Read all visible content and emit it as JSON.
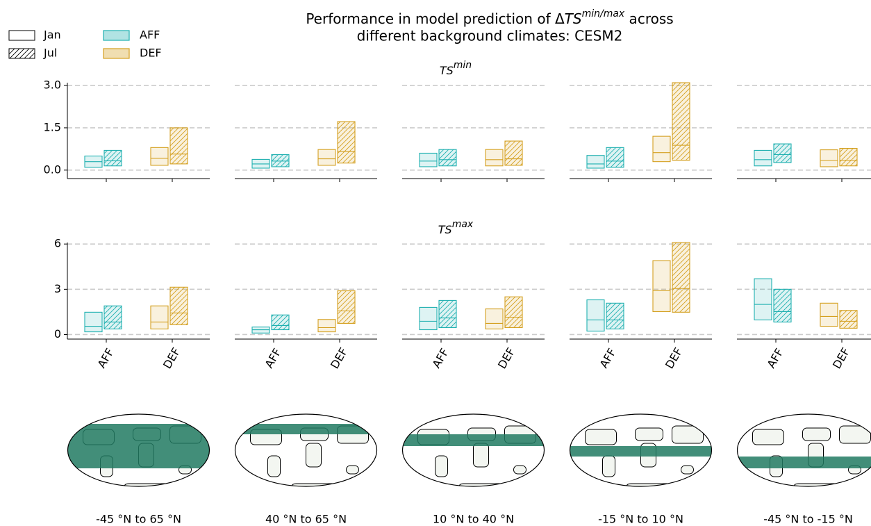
{
  "title": {
    "prefix": "Performance in model prediction of Δ",
    "symbol": "TS",
    "sup": "min/max",
    "suffix": " across",
    "line2": "different background climates: CESM2"
  },
  "series": [
    {
      "name": "Jan",
      "hatch": false
    },
    {
      "name": "Jul",
      "hatch": true
    }
  ],
  "categories": [
    "AFF",
    "DEF"
  ],
  "colors": [
    "#1fb0b0",
    "#d4a020"
  ],
  "legend": "upper left",
  "chart_data": [
    {
      "type": "box",
      "title": {
        "symbol": "TS",
        "sup": "min"
      },
      "ylim": [
        -0.3,
        3.1
      ],
      "yticks": [
        {
          "value": 0,
          "label": "0.0"
        },
        1.5,
        {
          "value": 3,
          "label": "3.0"
        }
      ],
      "grid": true,
      "panels": [
        {
          "series": [
            {
              "q1": [
                0.1,
                0.17
              ],
              "median": [
                0.3,
                0.42
              ],
              "q3": [
                0.5,
                0.8
              ]
            },
            {
              "q1": [
                0.15,
                0.22
              ],
              "median": [
                0.33,
                0.57
              ],
              "q3": [
                0.7,
                1.5
              ]
            }
          ]
        },
        {
          "series": [
            {
              "q1": [
                0.07,
                0.17
              ],
              "median": [
                0.22,
                0.4
              ],
              "q3": [
                0.38,
                0.73
              ]
            },
            {
              "q1": [
                0.12,
                0.25
              ],
              "median": [
                0.32,
                0.66
              ],
              "q3": [
                0.55,
                1.72
              ]
            }
          ]
        },
        {
          "series": [
            {
              "q1": [
                0.12,
                0.15
              ],
              "median": [
                0.32,
                0.37
              ],
              "q3": [
                0.6,
                0.73
              ]
            },
            {
              "q1": [
                0.15,
                0.17
              ],
              "median": [
                0.37,
                0.4
              ],
              "q3": [
                0.73,
                1.03
              ]
            }
          ]
        },
        {
          "series": [
            {
              "q1": [
                0.07,
                0.3
              ],
              "median": [
                0.22,
                0.62
              ],
              "q3": [
                0.52,
                1.2
              ]
            },
            {
              "q1": [
                0.1,
                0.35
              ],
              "median": [
                0.32,
                0.88
              ],
              "q3": [
                0.8,
                3.1
              ]
            }
          ]
        },
        {
          "series": [
            {
              "q1": [
                0.15,
                0.12
              ],
              "median": [
                0.37,
                0.35
              ],
              "q3": [
                0.7,
                0.72
              ]
            },
            {
              "q1": [
                0.27,
                0.15
              ],
              "median": [
                0.55,
                0.35
              ],
              "q3": [
                0.93,
                0.77
              ]
            }
          ]
        }
      ]
    },
    {
      "type": "box",
      "title": {
        "symbol": "TS",
        "sup": "max"
      },
      "ylim": [
        -0.3,
        6.1
      ],
      "yticks": [
        0,
        3,
        6
      ],
      "grid": true,
      "show_categories": true,
      "panels": [
        {
          "series": [
            {
              "q1": [
                0.18,
                0.37
              ],
              "median": [
                0.55,
                0.83
              ],
              "q3": [
                1.48,
                1.9
              ]
            },
            {
              "q1": [
                0.37,
                0.65
              ],
              "median": [
                0.83,
                1.43
              ],
              "q3": [
                1.9,
                3.14
              ]
            }
          ]
        },
        {
          "series": [
            {
              "q1": [
                0.1,
                0.18
              ],
              "median": [
                0.32,
                0.46
              ],
              "q3": [
                0.5,
                1.0
              ]
            },
            {
              "q1": [
                0.32,
                0.74
              ],
              "median": [
                0.6,
                1.57
              ],
              "q3": [
                1.3,
                2.9
              ]
            }
          ]
        },
        {
          "series": [
            {
              "q1": [
                0.32,
                0.37
              ],
              "median": [
                0.88,
                0.74
              ],
              "q3": [
                1.8,
                1.7
              ]
            },
            {
              "q1": [
                0.46,
                0.46
              ],
              "median": [
                1.1,
                1.15
              ],
              "q3": [
                2.26,
                2.5
              ]
            }
          ]
        },
        {
          "series": [
            {
              "q1": [
                0.23,
                1.52
              ],
              "median": [
                0.97,
                2.9
              ],
              "q3": [
                2.3,
                4.9
              ]
            },
            {
              "q1": [
                0.37,
                1.48
              ],
              "median": [
                0.97,
                3.05
              ],
              "q3": [
                2.08,
                6.1
              ]
            }
          ]
        },
        {
          "series": [
            {
              "q1": [
                0.97,
                0.55
              ],
              "median": [
                2.0,
                1.2
              ],
              "q3": [
                3.7,
                2.08
              ]
            },
            {
              "q1": [
                0.83,
                0.42
              ],
              "median": [
                1.52,
                0.88
              ],
              "q3": [
                3.0,
                1.6
              ]
            }
          ]
        }
      ]
    }
  ],
  "maps": [
    {
      "label": "-45 °N to 65 °N"
    },
    {
      "label": "40 °N to 65 °N"
    },
    {
      "label": "10 °N to 40 °N"
    },
    {
      "label": "-15 °N to 10 °N"
    },
    {
      "label": "-45 °N to -15 °N"
    }
  ]
}
